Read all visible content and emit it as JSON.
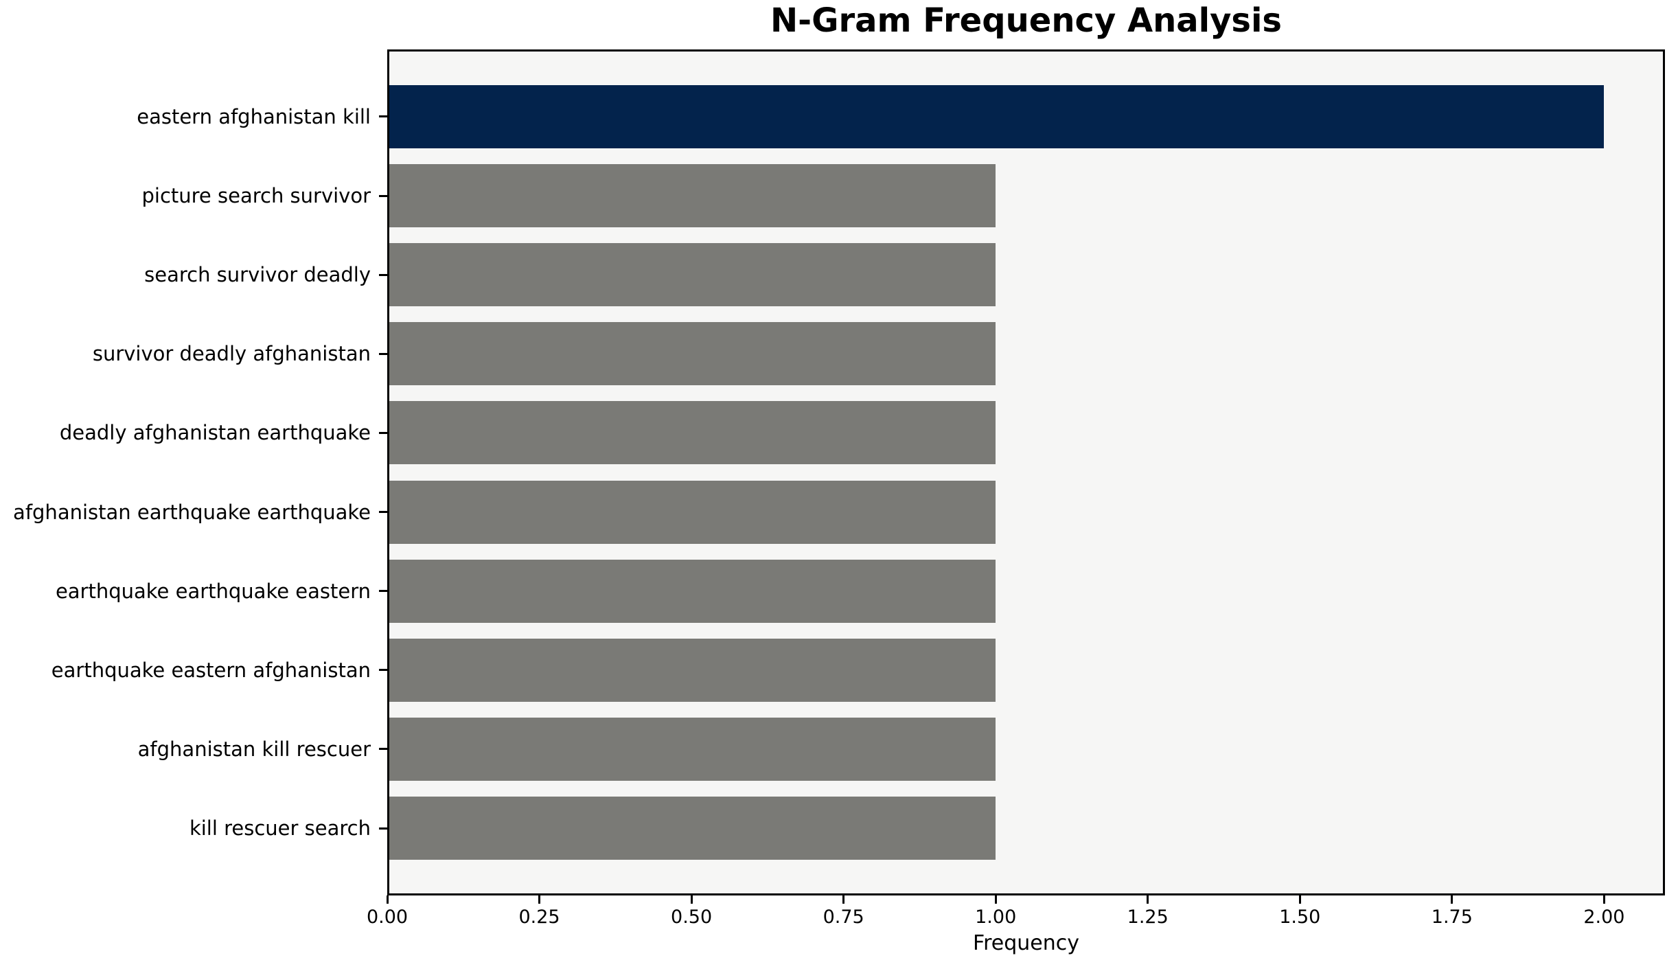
{
  "chart_data": {
    "type": "bar",
    "orientation": "horizontal",
    "title": "N-Gram Frequency Analysis",
    "xlabel": "Frequency",
    "ylabel": "",
    "categories": [
      "eastern afghanistan kill",
      "picture search survivor",
      "search survivor deadly",
      "survivor deadly afghanistan",
      "deadly afghanistan earthquake",
      "afghanistan earthquake earthquake",
      "earthquake earthquake eastern",
      "earthquake eastern afghanistan",
      "afghanistan kill rescuer",
      "kill rescuer search"
    ],
    "values": [
      2,
      1,
      1,
      1,
      1,
      1,
      1,
      1,
      1,
      1
    ],
    "bar_colors": [
      "#03234c",
      "#7a7a76",
      "#7a7a76",
      "#7a7a76",
      "#7a7a76",
      "#7a7a76",
      "#7a7a76",
      "#7a7a76",
      "#7a7a76",
      "#7a7a76"
    ],
    "xlim": [
      0,
      2.1
    ],
    "xticks": [
      {
        "v": 0.0,
        "label": "0.00"
      },
      {
        "v": 0.25,
        "label": "0.25"
      },
      {
        "v": 0.5,
        "label": "0.50"
      },
      {
        "v": 0.75,
        "label": "0.75"
      },
      {
        "v": 1.0,
        "label": "1.00"
      },
      {
        "v": 1.25,
        "label": "1.25"
      },
      {
        "v": 1.5,
        "label": "1.50"
      },
      {
        "v": 1.75,
        "label": "1.75"
      },
      {
        "v": 2.0,
        "label": "2.00"
      }
    ],
    "bar_height_fraction": 0.8,
    "grid": false,
    "legend": false,
    "colors": {
      "highlight": "#03234c",
      "default_bar": "#7a7a76",
      "plot_background": "#f6f6f5",
      "figure_background": "#ffffff",
      "spine": "#000000",
      "text": "#000000"
    }
  }
}
